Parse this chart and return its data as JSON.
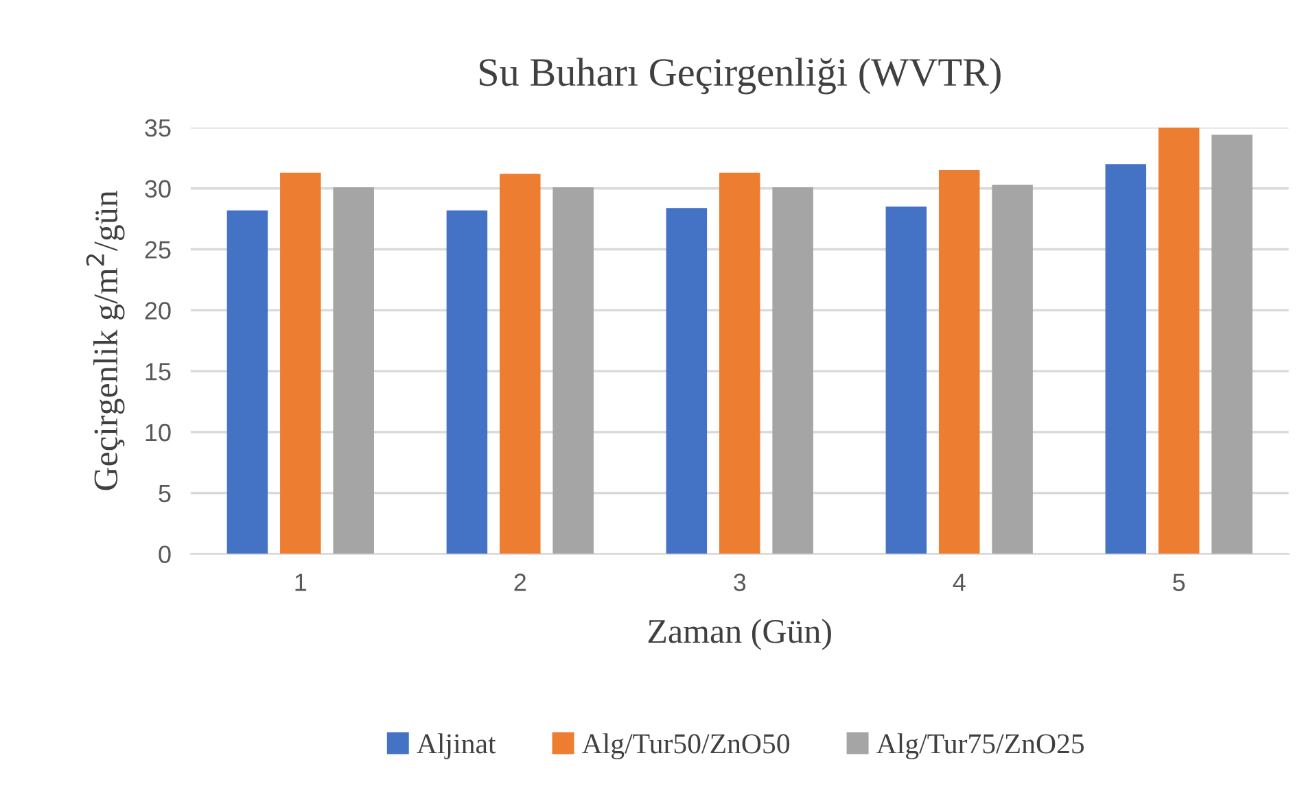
{
  "chart_data": {
    "type": "bar",
    "title": "Su Buharı Geçirgenliği (WVTR)",
    "xlabel": "Zaman (Gün)",
    "ylabel": "Geçirgenlik g/m$^{2}$/gün",
    "categories": [
      "1",
      "2",
      "3",
      "4",
      "5"
    ],
    "series": [
      {
        "name": "Aljinat",
        "color": "#4472c4",
        "values": [
          28.2,
          28.2,
          28.4,
          28.5,
          32.0
        ]
      },
      {
        "name": "Alg/Tur50/ZnO50",
        "color": "#ed7d31",
        "values": [
          31.3,
          31.2,
          31.3,
          31.5,
          35.0
        ]
      },
      {
        "name": "Alg/Tur75/ZnO25",
        "color": "#a5a5a5",
        "values": [
          30.1,
          30.1,
          30.1,
          30.3,
          34.4
        ]
      }
    ],
    "ylim": [
      0,
      35
    ],
    "yticks": [
      0,
      5,
      10,
      15,
      20,
      25,
      30,
      35
    ],
    "grid": "y",
    "legend": "bottom"
  }
}
